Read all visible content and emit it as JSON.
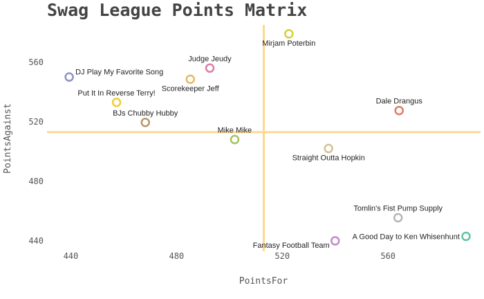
{
  "chart_data": {
    "type": "scatter",
    "title": "Swag League Points Matrix",
    "xlabel": "PointsFor",
    "ylabel": "PointsAgainst",
    "xlim": [
      431,
      595
    ],
    "ylim": [
      433,
      585
    ],
    "xticks": [
      440,
      480,
      520,
      560
    ],
    "yticks": [
      440,
      480,
      520,
      560
    ],
    "grid": false,
    "reference_lines": {
      "x": 513,
      "y": 513
    },
    "points": [
      {
        "label": "Mirjam Poterbin",
        "x": 522.5,
        "y": 579,
        "color": "#d4d13a",
        "label_pos": "below"
      },
      {
        "label": "Judge Jeudy",
        "x": 492.6,
        "y": 556,
        "color": "#e07aa3",
        "label_pos": "above"
      },
      {
        "label": "DJ Play My Favorite Song",
        "x": 439.4,
        "y": 550,
        "color": "#8c93c7",
        "label_pos": "right"
      },
      {
        "label": "Scorekeeper Jeff",
        "x": 485.2,
        "y": 548.5,
        "color": "#e6b85f",
        "label_pos": "below"
      },
      {
        "label": "Put It In  Reverse Terry!",
        "x": 457.3,
        "y": 533,
        "color": "#f2cc2e",
        "label_pos": "above"
      },
      {
        "label": "Dale Drangus",
        "x": 564.2,
        "y": 527.5,
        "color": "#e07b6a",
        "label_pos": "above"
      },
      {
        "label": "BJs Chubby Hubby",
        "x": 468.2,
        "y": 519.5,
        "color": "#b8956a",
        "label_pos": "above"
      },
      {
        "label": "Mike Mike",
        "x": 502,
        "y": 508,
        "color": "#a5c25c",
        "label_pos": "above"
      },
      {
        "label": "Straight Outta Hopkin",
        "x": 537.5,
        "y": 502,
        "color": "#d6bf95",
        "label_pos": "below"
      },
      {
        "label": "Tomlin's Fist Pump Supply",
        "x": 563.8,
        "y": 455.5,
        "color": "#b5b5b5",
        "label_pos": "above"
      },
      {
        "label": "A Good Day to Ken Whisenhunt",
        "x": 589.5,
        "y": 443,
        "color": "#5fc4a0",
        "label_pos": "left"
      },
      {
        "label": "Fantasy Football Team",
        "x": 540,
        "y": 440,
        "color": "#c08ac8",
        "label_pos": "belowleft"
      }
    ]
  }
}
